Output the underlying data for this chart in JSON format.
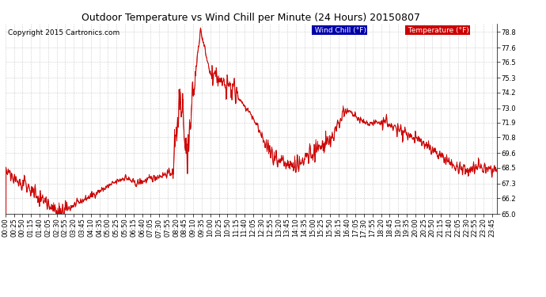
{
  "title": "Outdoor Temperature vs Wind Chill per Minute (24 Hours) 20150807",
  "copyright": "Copyright 2015 Cartronics.com",
  "ylim": [
    65.0,
    79.4
  ],
  "yticks": [
    65.0,
    66.2,
    67.3,
    68.5,
    69.6,
    70.8,
    71.9,
    73.0,
    74.2,
    75.3,
    76.5,
    77.6,
    78.8
  ],
  "line_color": "#cc0000",
  "background_color": "#ffffff",
  "plot_bg_color": "#ffffff",
  "grid_color": "#c8c8c8",
  "legend_wind_chill_bg": "#0000aa",
  "legend_temp_bg": "#cc0000",
  "legend_text_color": "#ffffff",
  "title_fontsize": 9,
  "copyright_fontsize": 6.5,
  "tick_fontsize": 6,
  "legend_fontsize": 6.5
}
